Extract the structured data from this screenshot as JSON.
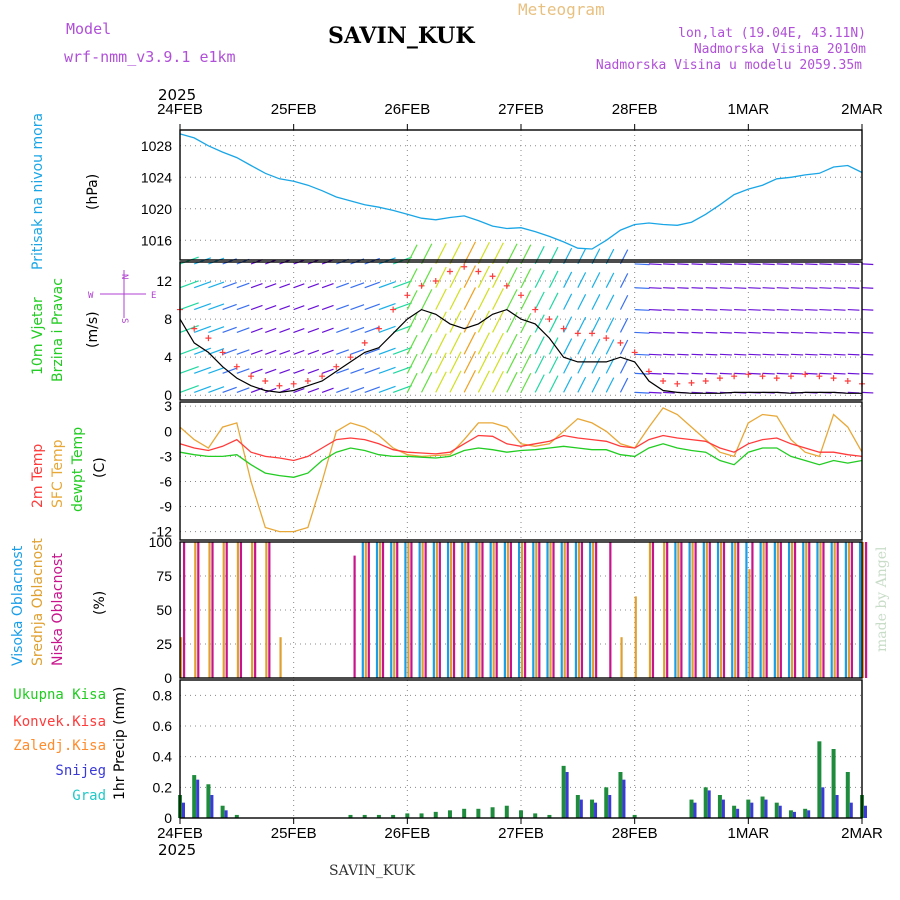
{
  "header": {
    "model_label": "Model",
    "model_value": "wrf-nmm_v3.9.1 e1km",
    "station": "SAVIN_KUK",
    "product": "Meteogram",
    "coords": "lon,lat (19.04E, 43.11N)",
    "elevation": "Nadmorska Visina 2010m",
    "model_elevation": "Nadmorska Visina u modelu 2059.35m",
    "year": "2025",
    "credit": "made by Angel",
    "footer_station": "SAVIN_KUK"
  },
  "time_axis": {
    "labels": [
      "24FEB",
      "25FEB",
      "26FEB",
      "27FEB",
      "28FEB",
      "1MAR",
      "2MAR"
    ],
    "range_hours": [
      0,
      144
    ]
  },
  "colors": {
    "pressure": "#1aa6e6",
    "temp2m": "#ff3b3b",
    "sfc": "#e8a838",
    "dew": "#22cc22",
    "high_cloud": "#1a9ee8",
    "mid_cloud": "#e0a030",
    "low_cloud": "#c8148c",
    "total_precip": "#1e8c3c",
    "conv": "#ff3b3b",
    "frozen": "#ff8c2c",
    "snow": "#3a3ad8",
    "hail": "#22c8c8",
    "wind_axis": "#b040d0"
  },
  "panels": {
    "pressure": {
      "ylabel_colored": "Pritisak na nivou mora",
      "units": "(hPa)",
      "ticks": [
        1016,
        1020,
        1024,
        1028
      ]
    },
    "wind": {
      "ylabel_line1": "10m Vjetar",
      "ylabel_line2": "Brzina i Pravac",
      "units": "(m/s)",
      "ticks": [
        0,
        4,
        8,
        12
      ],
      "compass_n": "N",
      "compass_s": "S",
      "compass_e": "E",
      "compass_w": "W"
    },
    "temp": {
      "label_2m": "2m Temp",
      "label_sfc": "SFC Temp",
      "label_dew": "dewpt Temp",
      "units": "(C)",
      "ticks": [
        3,
        0,
        -3,
        -6,
        -9,
        -12
      ]
    },
    "cloud": {
      "label_high": "Visoka Oblacnost",
      "label_mid": "Srednja Oblacnost",
      "label_low": "Niska Oblacnost",
      "units": "(%)",
      "ticks": [
        0,
        25,
        50,
        75,
        100
      ]
    },
    "precip": {
      "units": "1hr Precip (mm)",
      "ticks": [
        0,
        0.2,
        0.4,
        0.6,
        0.8
      ],
      "legend": [
        "Ukupna Kisa",
        "Konvek.Kisa",
        "Zaledj.Kisa",
        "Snijeg",
        "Grad"
      ]
    }
  },
  "chart_data": [
    {
      "type": "line",
      "title": "",
      "ylabel": "Pritisak na nivou mora (hPa)",
      "x_hours": [
        0,
        3,
        6,
        9,
        12,
        15,
        18,
        21,
        24,
        27,
        30,
        33,
        36,
        39,
        42,
        45,
        48,
        51,
        54,
        57,
        60,
        63,
        66,
        69,
        72,
        75,
        78,
        81,
        84,
        87,
        90,
        93,
        96,
        99,
        102,
        105,
        108,
        111,
        114,
        117,
        120,
        123,
        126,
        129,
        132,
        135,
        138,
        141,
        144
      ],
      "series": [
        {
          "name": "",
          "values": [
            1029.5,
            1029.0,
            1028.0,
            1027.2,
            1026.5,
            1025.5,
            1024.5,
            1023.8,
            1023.5,
            1023.0,
            1022.3,
            1021.5,
            1021.0,
            1020.5,
            1020.2,
            1019.8,
            1019.3,
            1018.8,
            1018.6,
            1018.9,
            1019.1,
            1018.5,
            1017.8,
            1017.5,
            1017.6,
            1017.1,
            1016.5,
            1015.8,
            1015.0,
            1014.9,
            1016.0,
            1017.3,
            1018.0,
            1018.2,
            1018.0,
            1017.9,
            1018.3,
            1019.3,
            1020.5,
            1021.8,
            1022.5,
            1023.0,
            1023.8,
            1024.0,
            1024.3,
            1024.5,
            1025.3,
            1025.5,
            1024.6
          ]
        }
      ],
      "ylim": [
        1013.5,
        1030
      ]
    },
    {
      "type": "line",
      "title": "",
      "ylabel": "10m Vjetar Brzina i Pravac (m/s)",
      "x_hours": [
        0,
        3,
        6,
        9,
        12,
        15,
        18,
        21,
        24,
        27,
        30,
        33,
        36,
        39,
        42,
        45,
        48,
        51,
        54,
        57,
        60,
        63,
        66,
        69,
        72,
        75,
        78,
        81,
        84,
        87,
        90,
        93,
        96,
        99,
        102,
        105,
        108,
        111,
        114,
        117,
        120,
        123,
        126,
        129,
        132,
        135,
        138,
        141,
        144
      ],
      "series": [
        {
          "name": "",
          "values": [
            8.0,
            5.5,
            4.5,
            3.0,
            1.8,
            1.0,
            0.5,
            0.3,
            0.5,
            1.0,
            1.5,
            2.5,
            3.5,
            4.5,
            5.0,
            6.5,
            8.0,
            9.0,
            8.5,
            7.5,
            7.0,
            7.5,
            8.5,
            9.0,
            8.0,
            7.5,
            6.0,
            4.0,
            3.5,
            3.5,
            3.5,
            4.0,
            3.5,
            1.5,
            0.5,
            0.3,
            0.2,
            0.2,
            0.2,
            0.3,
            0.3,
            0.3,
            0.3,
            0.2,
            0.3,
            0.3,
            0.3,
            0.2,
            0.2
          ]
        },
        {
          "name": "",
          "values": [
            9.0,
            7.0,
            6.0,
            4.5,
            3.0,
            2.0,
            1.5,
            1.0,
            1.2,
            1.5,
            2.0,
            3.0,
            4.0,
            5.5,
            7.0,
            9.0,
            10.5,
            11.5,
            12.0,
            13.0,
            13.5,
            13.0,
            12.5,
            11.5,
            10.5,
            9.0,
            8.0,
            7.0,
            6.5,
            6.5,
            6.0,
            5.5,
            4.5,
            2.5,
            1.5,
            1.2,
            1.3,
            1.5,
            1.8,
            2.0,
            2.2,
            2.0,
            1.8,
            2.0,
            2.2,
            2.0,
            1.8,
            1.5,
            1.2
          ]
        }
      ],
      "ylim": [
        -0.5,
        14
      ]
    },
    {
      "type": "line",
      "title": "",
      "ylabel": "Temp (C)",
      "x_hours": [
        0,
        3,
        6,
        9,
        12,
        15,
        18,
        21,
        24,
        27,
        30,
        33,
        36,
        39,
        42,
        45,
        48,
        51,
        54,
        57,
        60,
        63,
        66,
        69,
        72,
        75,
        78,
        81,
        84,
        87,
        90,
        93,
        96,
        99,
        102,
        105,
        108,
        111,
        114,
        117,
        120,
        123,
        126,
        129,
        132,
        135,
        138,
        141,
        144
      ],
      "series": [
        {
          "name": "2m Temp",
          "values": [
            -1.5,
            -2.0,
            -2.3,
            -1.8,
            -1.0,
            -2.5,
            -3.0,
            -3.2,
            -3.5,
            -3.0,
            -2.0,
            -1.0,
            -0.8,
            -1.0,
            -1.5,
            -2.2,
            -2.5,
            -2.6,
            -2.7,
            -2.5,
            -1.5,
            -0.5,
            -0.6,
            -1.5,
            -1.8,
            -1.5,
            -1.2,
            -0.5,
            -0.8,
            -1.0,
            -1.2,
            -1.8,
            -2.0,
            -1.0,
            -0.5,
            -0.8,
            -1.0,
            -1.2,
            -2.0,
            -2.5,
            -1.5,
            -1.0,
            -0.8,
            -1.5,
            -2.0,
            -2.5,
            -2.5,
            -2.8,
            -3.0
          ]
        },
        {
          "name": "SFC Temp",
          "values": [
            0.5,
            -1.0,
            -2.0,
            0.5,
            1.0,
            -6.0,
            -11.5,
            -12.0,
            -12.0,
            -11.5,
            -6.0,
            0.0,
            1.0,
            0.5,
            -0.5,
            -2.0,
            -2.8,
            -3.0,
            -2.9,
            -2.8,
            -1.0,
            1.0,
            1.0,
            0.5,
            -1.5,
            -1.8,
            -1.5,
            0.0,
            1.5,
            1.0,
            0.0,
            -1.5,
            -2.0,
            0.5,
            2.8,
            2.0,
            0.5,
            -1.0,
            -2.5,
            -3.0,
            1.0,
            2.0,
            1.8,
            -1.0,
            -2.5,
            -3.0,
            2.0,
            0.5,
            -2.5
          ]
        },
        {
          "name": "dewpt Temp",
          "values": [
            -2.5,
            -2.8,
            -3.0,
            -3.0,
            -2.8,
            -4.0,
            -5.0,
            -5.3,
            -5.5,
            -5.0,
            -3.5,
            -2.5,
            -2.0,
            -2.3,
            -2.8,
            -3.0,
            -3.0,
            -3.1,
            -3.2,
            -3.0,
            -2.3,
            -2.0,
            -2.2,
            -2.5,
            -2.3,
            -2.2,
            -2.0,
            -1.8,
            -2.0,
            -2.2,
            -2.2,
            -2.8,
            -3.0,
            -2.0,
            -1.5,
            -2.0,
            -2.3,
            -2.5,
            -3.5,
            -4.0,
            -2.5,
            -2.0,
            -2.0,
            -3.0,
            -3.5,
            -4.0,
            -3.5,
            -3.8,
            -3.5
          ]
        }
      ],
      "ylim": [
        -13,
        3.5
      ]
    },
    {
      "type": "bar",
      "title": "",
      "ylabel": "Oblacnost (%)",
      "x_hours": [
        0,
        3,
        6,
        9,
        12,
        15,
        18,
        21,
        24,
        27,
        30,
        33,
        36,
        39,
        42,
        45,
        48,
        51,
        54,
        57,
        60,
        63,
        66,
        69,
        72,
        75,
        78,
        81,
        84,
        87,
        90,
        93,
        96,
        99,
        102,
        105,
        108,
        111,
        114,
        117,
        120,
        123,
        126,
        129,
        132,
        135,
        138,
        141,
        144
      ],
      "series": [
        {
          "name": "Visoka Oblacnost",
          "values": [
            0,
            0,
            0,
            0,
            0,
            0,
            0,
            0,
            0,
            0,
            0,
            0,
            0,
            100,
            100,
            100,
            100,
            100,
            100,
            100,
            100,
            100,
            100,
            100,
            100,
            100,
            100,
            100,
            100,
            100,
            0,
            0,
            0,
            0,
            0,
            100,
            100,
            100,
            100,
            100,
            100,
            100,
            100,
            100,
            100,
            100,
            100,
            100,
            100
          ]
        },
        {
          "name": "Srednja Oblacnost",
          "values": [
            30,
            100,
            100,
            100,
            100,
            100,
            100,
            30,
            0,
            0,
            0,
            0,
            0,
            100,
            100,
            100,
            100,
            100,
            100,
            100,
            100,
            100,
            100,
            100,
            100,
            100,
            100,
            100,
            100,
            100,
            0,
            30,
            60,
            100,
            100,
            100,
            100,
            100,
            100,
            100,
            80,
            100,
            100,
            100,
            100,
            100,
            100,
            100,
            100
          ]
        },
        {
          "name": "Niska Oblacnost",
          "values": [
            100,
            100,
            100,
            100,
            100,
            100,
            100,
            0,
            0,
            0,
            0,
            0,
            90,
            100,
            100,
            100,
            100,
            100,
            100,
            100,
            100,
            100,
            100,
            100,
            100,
            100,
            100,
            100,
            100,
            100,
            100,
            0,
            0,
            100,
            100,
            100,
            100,
            100,
            100,
            100,
            100,
            100,
            100,
            100,
            100,
            100,
            100,
            100,
            100
          ]
        }
      ],
      "ylim": [
        0,
        100
      ]
    },
    {
      "type": "bar",
      "title": "",
      "ylabel": "1hr Precip (mm)",
      "x_hours": [
        0,
        3,
        6,
        9,
        12,
        15,
        18,
        21,
        24,
        27,
        30,
        33,
        36,
        39,
        42,
        45,
        48,
        51,
        54,
        57,
        60,
        63,
        66,
        69,
        72,
        75,
        78,
        81,
        84,
        87,
        90,
        93,
        96,
        99,
        102,
        105,
        108,
        111,
        114,
        117,
        120,
        123,
        126,
        129,
        132,
        135,
        138,
        141,
        144
      ],
      "series": [
        {
          "name": "Ukupna Kisa",
          "values": [
            0.15,
            0.28,
            0.22,
            0.08,
            0.02,
            0.0,
            0.0,
            0.0,
            0.0,
            0.0,
            0.0,
            0.0,
            0.02,
            0.02,
            0.02,
            0.02,
            0.03,
            0.03,
            0.04,
            0.05,
            0.06,
            0.06,
            0.07,
            0.08,
            0.05,
            0.03,
            0.02,
            0.34,
            0.15,
            0.12,
            0.2,
            0.3,
            0.02,
            0.0,
            0.0,
            0.0,
            0.12,
            0.2,
            0.15,
            0.08,
            0.12,
            0.14,
            0.1,
            0.05,
            0.06,
            0.5,
            0.45,
            0.3,
            0.15
          ]
        },
        {
          "name": "Snijeg",
          "values": [
            0.1,
            0.25,
            0.15,
            0.05,
            0.0,
            0.0,
            0.0,
            0.0,
            0.0,
            0.0,
            0.0,
            0.0,
            0.0,
            0.0,
            0.0,
            0.0,
            0.0,
            0.0,
            0.0,
            0.0,
            0.0,
            0.0,
            0.0,
            0.0,
            0.0,
            0.0,
            0.0,
            0.3,
            0.12,
            0.1,
            0.15,
            0.25,
            0.0,
            0.0,
            0.0,
            0.0,
            0.1,
            0.18,
            0.12,
            0.06,
            0.1,
            0.12,
            0.08,
            0.04,
            0.05,
            0.2,
            0.15,
            0.1,
            0.08
          ]
        }
      ],
      "ylim": [
        0,
        0.9
      ]
    }
  ]
}
